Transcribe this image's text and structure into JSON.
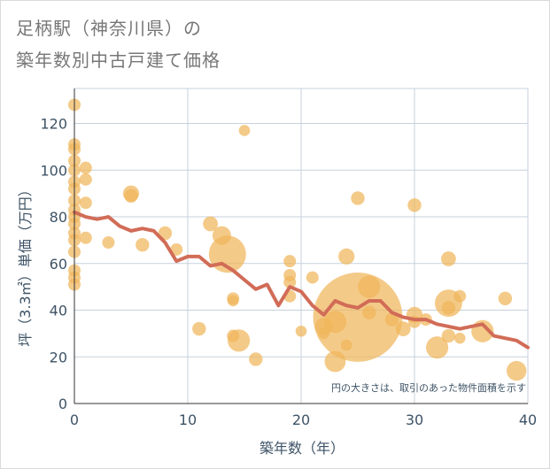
{
  "title_line1": "足柄駅（神奈川県）の",
  "title_line2": "築年数別中古戸建て価格",
  "chart_data": {
    "type": "scatter",
    "title": "足柄駅（神奈川県）の築年数別中古戸建て価格",
    "xlabel": "築年数（年）",
    "ylabel": "坪（3.3㎡）単価（万円）",
    "xlim": [
      0,
      40
    ],
    "ylim": [
      0,
      135
    ],
    "xticks": [
      0,
      10,
      20,
      30,
      40
    ],
    "yticks": [
      0,
      20,
      40,
      60,
      80,
      100,
      120
    ],
    "annotation": "円の大きさは、取引のあった物件面積を示す",
    "colors": {
      "bubble": "#f0b55a",
      "line": "#d16c57",
      "grid": "#c7d1dc",
      "text": "#3e5366"
    },
    "bubbles": [
      {
        "x": 0,
        "y": 128,
        "s": 1
      },
      {
        "x": 0,
        "y": 111,
        "s": 1
      },
      {
        "x": 0,
        "y": 109,
        "s": 1
      },
      {
        "x": 0,
        "y": 104,
        "s": 1
      },
      {
        "x": 0,
        "y": 100,
        "s": 1
      },
      {
        "x": 0,
        "y": 95,
        "s": 1
      },
      {
        "x": 0,
        "y": 92,
        "s": 1
      },
      {
        "x": 0,
        "y": 87,
        "s": 1
      },
      {
        "x": 0,
        "y": 83,
        "s": 1
      },
      {
        "x": 0,
        "y": 80,
        "s": 1
      },
      {
        "x": 0,
        "y": 77,
        "s": 1
      },
      {
        "x": 0,
        "y": 73,
        "s": 1
      },
      {
        "x": 0,
        "y": 70,
        "s": 1
      },
      {
        "x": 0,
        "y": 65,
        "s": 1
      },
      {
        "x": 0,
        "y": 57,
        "s": 1
      },
      {
        "x": 0,
        "y": 54,
        "s": 1
      },
      {
        "x": 0,
        "y": 51,
        "s": 1
      },
      {
        "x": 1,
        "y": 101,
        "s": 1
      },
      {
        "x": 1,
        "y": 96,
        "s": 1
      },
      {
        "x": 1,
        "y": 86,
        "s": 1
      },
      {
        "x": 1,
        "y": 71,
        "s": 1
      },
      {
        "x": 3,
        "y": 69,
        "s": 1
      },
      {
        "x": 5,
        "y": 90,
        "s": 1.3
      },
      {
        "x": 5,
        "y": 89,
        "s": 1.1
      },
      {
        "x": 6,
        "y": 68,
        "s": 1.1
      },
      {
        "x": 8,
        "y": 73,
        "s": 1.1
      },
      {
        "x": 9,
        "y": 66,
        "s": 1
      },
      {
        "x": 11,
        "y": 32,
        "s": 1.1
      },
      {
        "x": 12,
        "y": 77,
        "s": 1.2
      },
      {
        "x": 13,
        "y": 72,
        "s": 1.5
      },
      {
        "x": 13.5,
        "y": 64,
        "s": 3
      },
      {
        "x": 14,
        "y": 45,
        "s": 1
      },
      {
        "x": 14,
        "y": 44,
        "s": 0.9
      },
      {
        "x": 14,
        "y": 29,
        "s": 1
      },
      {
        "x": 14.5,
        "y": 27,
        "s": 1.8
      },
      {
        "x": 15,
        "y": 117,
        "s": 0.9
      },
      {
        "x": 16,
        "y": 19,
        "s": 1.1
      },
      {
        "x": 19,
        "y": 61,
        "s": 1
      },
      {
        "x": 19,
        "y": 55,
        "s": 1
      },
      {
        "x": 19,
        "y": 52,
        "s": 1
      },
      {
        "x": 19,
        "y": 46,
        "s": 1
      },
      {
        "x": 20,
        "y": 31,
        "s": 0.9
      },
      {
        "x": 21,
        "y": 54,
        "s": 1
      },
      {
        "x": 22,
        "y": 33,
        "s": 1.4
      },
      {
        "x": 22,
        "y": 30,
        "s": 0.9
      },
      {
        "x": 23,
        "y": 35,
        "s": 1.8
      },
      {
        "x": 23,
        "y": 18,
        "s": 1.7
      },
      {
        "x": 24,
        "y": 63,
        "s": 1.3
      },
      {
        "x": 24,
        "y": 25,
        "s": 0.9
      },
      {
        "x": 25,
        "y": 88,
        "s": 1.1
      },
      {
        "x": 25,
        "y": 37,
        "s": 7.2
      },
      {
        "x": 26,
        "y": 50,
        "s": 1.8
      },
      {
        "x": 26,
        "y": 39,
        "s": 1.1
      },
      {
        "x": 28,
        "y": 36,
        "s": 1.1
      },
      {
        "x": 29,
        "y": 32,
        "s": 1.2
      },
      {
        "x": 30,
        "y": 85,
        "s": 1.1
      },
      {
        "x": 30,
        "y": 38,
        "s": 1.3
      },
      {
        "x": 30,
        "y": 35,
        "s": 1
      },
      {
        "x": 31,
        "y": 36,
        "s": 1
      },
      {
        "x": 32,
        "y": 24,
        "s": 1.8
      },
      {
        "x": 33,
        "y": 62,
        "s": 1.2
      },
      {
        "x": 33,
        "y": 43,
        "s": 2.2
      },
      {
        "x": 33,
        "y": 41,
        "s": 1.1
      },
      {
        "x": 33,
        "y": 29,
        "s": 1.1
      },
      {
        "x": 34,
        "y": 46,
        "s": 1
      },
      {
        "x": 34,
        "y": 28,
        "s": 0.9
      },
      {
        "x": 36,
        "y": 31,
        "s": 1.8
      },
      {
        "x": 38,
        "y": 45,
        "s": 1.1
      },
      {
        "x": 39,
        "y": 14,
        "s": 1.6
      }
    ],
    "trend": {
      "x": [
        0,
        1,
        2,
        3,
        4,
        5,
        6,
        7,
        8,
        9,
        10,
        11,
        12,
        13,
        14,
        15,
        16,
        17,
        18,
        19,
        20,
        21,
        22,
        23,
        24,
        25,
        26,
        27,
        28,
        29,
        30,
        31,
        32,
        33,
        34,
        35,
        36,
        37,
        38,
        39,
        40
      ],
      "y": [
        82,
        80,
        79,
        80,
        76,
        74,
        75,
        74,
        69,
        61,
        63,
        63,
        59,
        60,
        57,
        53,
        49,
        51,
        42,
        50,
        48,
        42,
        38,
        44,
        42,
        41,
        44,
        44,
        39,
        37,
        36,
        36,
        34,
        33,
        32,
        33,
        34,
        29,
        28,
        27,
        24
      ]
    }
  }
}
